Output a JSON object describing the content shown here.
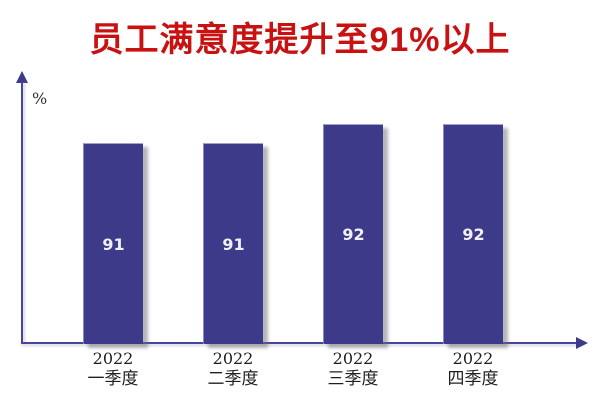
{
  "title": {
    "text": "员工满意度提升至91%以上",
    "color": "#c81212"
  },
  "chart_data": {
    "type": "bar",
    "title": "员工满意度提升至91%以上",
    "categories": [
      {
        "year": "2022",
        "quarter": "一季度"
      },
      {
        "year": "2022",
        "quarter": "二季度"
      },
      {
        "year": "2022",
        "quarter": "三季度"
      },
      {
        "year": "2022",
        "quarter": "四季度"
      }
    ],
    "values": [
      91,
      91,
      92,
      92
    ],
    "unit": "%",
    "xlabel": "",
    "ylabel": "%",
    "ylim": [
      80.4,
      94
    ],
    "grid": false,
    "legend": false,
    "bar_color": "#3d3a8a",
    "axis_color": "#4845a2",
    "value_label_color": "#f0f0f5",
    "tick_color": "#1f1f1f"
  }
}
